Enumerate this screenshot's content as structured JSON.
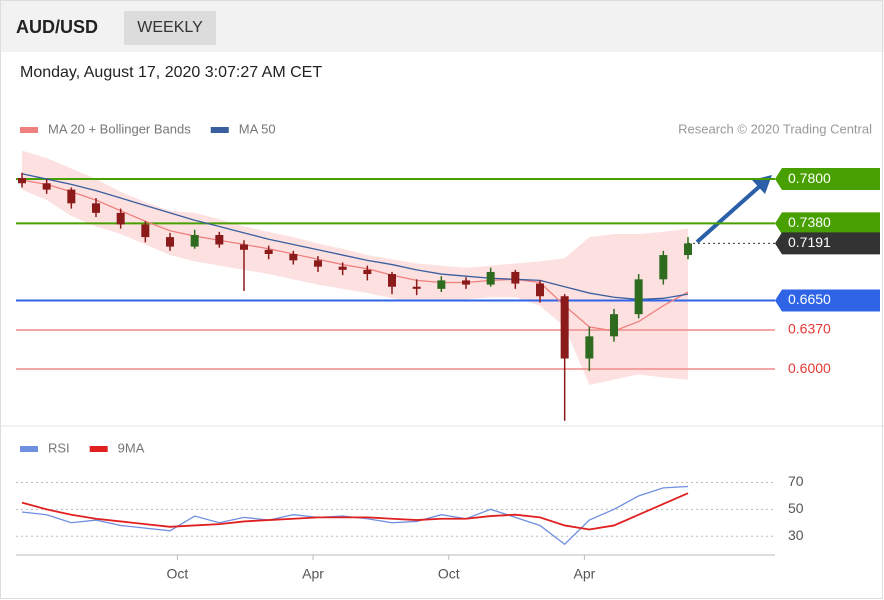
{
  "header": {
    "symbol": "AUD/USD",
    "period": "WEEKLY",
    "timestamp": "Monday, August 17, 2020 3:07:27 AM CET",
    "credit": "Research © 2020 Trading Central"
  },
  "chart_data": [
    {
      "type": "candlestick",
      "legend": [
        "MA 20 + Bollinger Bands",
        "MA 50"
      ],
      "xlim": [
        0,
        27
      ],
      "xticks": [
        {
          "value": 6.3,
          "label": "Oct"
        },
        {
          "value": 11.8,
          "label": "Apr"
        },
        {
          "value": 17.3,
          "label": "Oct"
        },
        {
          "value": 22.8,
          "label": "Apr"
        }
      ],
      "ylim": [
        0.547,
        0.817
      ],
      "up_color": "#2e6b1e",
      "down_color": "#8b1a1a",
      "open": [
        0.781,
        0.776,
        0.77,
        0.757,
        0.748,
        0.737,
        0.725,
        0.716,
        0.727,
        0.718,
        0.713,
        0.709,
        0.703,
        0.697,
        0.694,
        0.69,
        0.678,
        0.676,
        0.684,
        0.68,
        0.692,
        0.681,
        0.669,
        0.61,
        0.631,
        0.652,
        0.685,
        0.708
      ],
      "high": [
        0.786,
        0.78,
        0.772,
        0.762,
        0.752,
        0.74,
        0.729,
        0.732,
        0.73,
        0.722,
        0.717,
        0.712,
        0.707,
        0.701,
        0.698,
        0.692,
        0.685,
        0.688,
        0.687,
        0.696,
        0.694,
        0.684,
        0.671,
        0.64,
        0.657,
        0.69,
        0.712,
        0.725
      ],
      "low": [
        0.772,
        0.766,
        0.752,
        0.744,
        0.733,
        0.72,
        0.712,
        0.714,
        0.715,
        0.674,
        0.704,
        0.699,
        0.692,
        0.689,
        0.684,
        0.671,
        0.67,
        0.673,
        0.676,
        0.678,
        0.676,
        0.663,
        0.551,
        0.598,
        0.626,
        0.648,
        0.68,
        0.704
      ],
      "close": [
        0.776,
        0.77,
        0.757,
        0.748,
        0.737,
        0.725,
        0.716,
        0.727,
        0.718,
        0.713,
        0.709,
        0.703,
        0.697,
        0.694,
        0.69,
        0.678,
        0.676,
        0.684,
        0.68,
        0.692,
        0.681,
        0.669,
        0.61,
        0.631,
        0.652,
        0.685,
        0.708,
        0.719
      ],
      "band": {
        "color": "#fcd9d9",
        "upper": [
          0.807,
          0.8,
          0.79,
          0.78,
          0.768,
          0.758,
          0.75,
          0.748,
          0.742,
          0.735,
          0.73,
          0.725,
          0.719,
          0.714,
          0.708,
          0.704,
          0.7,
          0.698,
          0.696,
          0.698,
          0.7,
          0.702,
          0.705,
          0.725,
          0.728,
          0.728,
          0.73,
          0.733
        ],
        "lower": [
          0.77,
          0.76,
          0.745,
          0.735,
          0.728,
          0.718,
          0.708,
          0.702,
          0.698,
          0.694,
          0.69,
          0.685,
          0.68,
          0.676,
          0.672,
          0.667,
          0.664,
          0.664,
          0.666,
          0.668,
          0.668,
          0.66,
          0.64,
          0.585,
          0.59,
          0.595,
          0.592,
          0.59
        ]
      },
      "series": [
        {
          "name": "MA 20",
          "color": "#f08080",
          "values": [
            0.779,
            0.775,
            0.768,
            0.76,
            0.75,
            0.74,
            0.731,
            0.726,
            0.722,
            0.718,
            0.714,
            0.709,
            0.704,
            0.699,
            0.695,
            0.689,
            0.684,
            0.682,
            0.682,
            0.684,
            0.685,
            0.682,
            0.66,
            0.64,
            0.636,
            0.645,
            0.66,
            0.673
          ]
        },
        {
          "name": "MA 50",
          "color": "#3a5f9e",
          "values": [
            0.785,
            0.78,
            0.775,
            0.769,
            0.762,
            0.755,
            0.748,
            0.741,
            0.735,
            0.729,
            0.723,
            0.718,
            0.713,
            0.708,
            0.703,
            0.699,
            0.694,
            0.69,
            0.688,
            0.686,
            0.685,
            0.684,
            0.678,
            0.672,
            0.668,
            0.666,
            0.667,
            0.671
          ]
        }
      ],
      "levels": [
        {
          "value": 0.78,
          "label": "0.7800",
          "color": "#48a000",
          "style": "box"
        },
        {
          "value": 0.738,
          "label": "0.7380",
          "color": "#48a000",
          "style": "box"
        },
        {
          "value": 0.665,
          "label": "0.6650",
          "color": "#2f64e6",
          "style": "box"
        },
        {
          "value": 0.637,
          "label": "0.6370",
          "color": "#f08a8a",
          "style": "text"
        },
        {
          "value": 0.6,
          "label": "0.6000",
          "color": "#f08a8a",
          "style": "text"
        }
      ],
      "last_price": {
        "value": 0.7191,
        "label": "0.7191",
        "color": "#333333"
      }
    },
    {
      "type": "line",
      "xlim": [
        0,
        27
      ],
      "ylim": [
        16,
        83
      ],
      "yticks": [
        30,
        50,
        70
      ],
      "series": [
        {
          "name": "RSI",
          "color": "#6f8fe0",
          "values": [
            48,
            46,
            40,
            42,
            38,
            36,
            34,
            45,
            40,
            44,
            42,
            46,
            44,
            45,
            43,
            40,
            41,
            46,
            43,
            50,
            44,
            38,
            24,
            42,
            50,
            60,
            66,
            67
          ]
        },
        {
          "name": "9MA",
          "color": "#e02020",
          "values": [
            55,
            50,
            46,
            43,
            41,
            39,
            37,
            38,
            39,
            41,
            42,
            43,
            44,
            44,
            44,
            43,
            42,
            43,
            43,
            45,
            46,
            44,
            38,
            35,
            38,
            46,
            54,
            62
          ]
        }
      ]
    }
  ]
}
